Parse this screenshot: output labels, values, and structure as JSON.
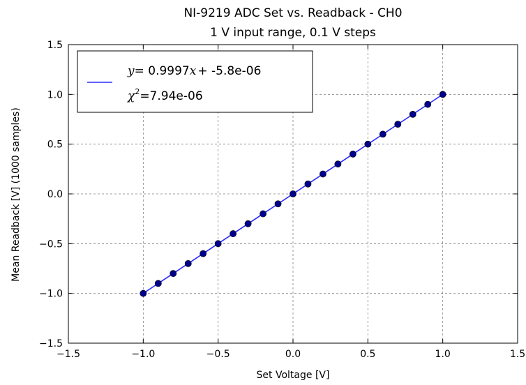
{
  "chart_data": {
    "type": "scatter",
    "title": "NI-9219 ADC Set vs. Readback - CH0",
    "subtitle": "1 V input range, 0.1 V steps",
    "xlabel": "Set Voltage [V]",
    "ylabel": "Mean Readback [V] (1000 samples)",
    "xlim": [
      -1.5,
      1.5
    ],
    "ylim": [
      -1.5,
      1.5
    ],
    "xticks": [
      "−1.5",
      "−1.0",
      "−0.5",
      "0.0",
      "0.5",
      "1.0",
      "1.5"
    ],
    "yticks": [
      "−1.5",
      "−1.0",
      "−0.5",
      "0.0",
      "0.5",
      "1.0",
      "1.5"
    ],
    "grid": true,
    "legend_position": "top-left",
    "series": [
      {
        "type": "scatter",
        "color": "#00008b",
        "x": [
          -1.0,
          -0.9,
          -0.8,
          -0.7,
          -0.6,
          -0.5,
          -0.4,
          -0.3,
          -0.2,
          -0.1,
          0.0,
          0.1,
          0.2,
          0.3,
          0.4,
          0.5,
          0.6,
          0.7,
          0.8,
          0.9,
          1.0
        ],
        "y": [
          -1.0,
          -0.9,
          -0.8,
          -0.7,
          -0.6,
          -0.5,
          -0.4,
          -0.3,
          -0.2,
          -0.1,
          0.0,
          0.1,
          0.2,
          0.3,
          0.4,
          0.5,
          0.6,
          0.7,
          0.8,
          0.9,
          1.0
        ]
      },
      {
        "type": "line",
        "color": "#2a2aff",
        "fit": {
          "slope": 0.9997,
          "intercept": -5.8e-06
        },
        "x": [
          -1.0,
          1.0
        ],
        "legend": {
          "line1_var": "y",
          "line1_eq": "= 0.9997",
          "line1_x": "x",
          "line1_rest": "+ -5.8e-06",
          "line2_chi": "χ",
          "line2_sup": "2",
          "line2_rest": "=7.94e-06"
        }
      }
    ]
  }
}
